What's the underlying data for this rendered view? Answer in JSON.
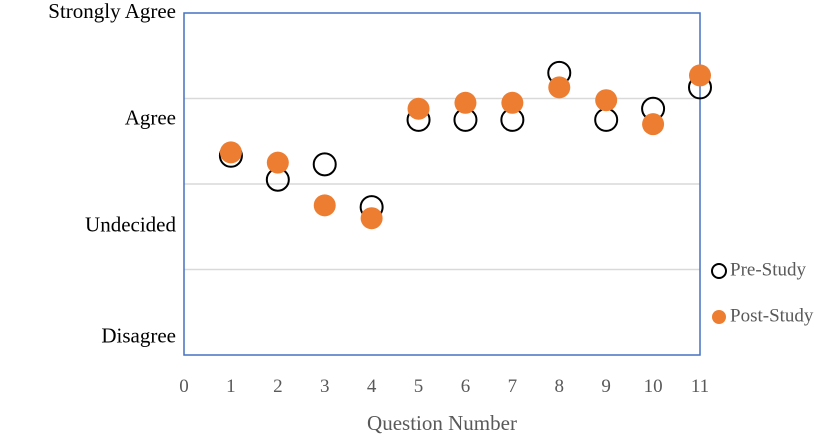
{
  "chart_data": {
    "type": "scatter",
    "xlabel": "Question Number",
    "ylabel": "",
    "xlim": [
      0,
      11
    ],
    "ylim": [
      0,
      4
    ],
    "x_ticks": [
      "0",
      "1",
      "2",
      "3",
      "4",
      "5",
      "6",
      "7",
      "8",
      "9",
      "10",
      "11"
    ],
    "y_ticks": [
      {
        "value": 0.2,
        "label": "Disagree"
      },
      {
        "value": 1.5,
        "label": "Undecided"
      },
      {
        "value": 2.75,
        "label": "Agree"
      },
      {
        "value": 4.0,
        "label": "Strongly Agree"
      }
    ],
    "gridlines_y": [
      1,
      2,
      3
    ],
    "legend_position": "right",
    "series": [
      {
        "name": "Pre-Study",
        "marker": "hollow-circle",
        "color": "#000000",
        "points": [
          {
            "x": 1,
            "y": 2.33
          },
          {
            "x": 2,
            "y": 2.05
          },
          {
            "x": 3,
            "y": 2.23
          },
          {
            "x": 4,
            "y": 1.73
          },
          {
            "x": 5,
            "y": 2.75
          },
          {
            "x": 6,
            "y": 2.75
          },
          {
            "x": 7,
            "y": 2.75
          },
          {
            "x": 8,
            "y": 3.3
          },
          {
            "x": 9,
            "y": 2.75
          },
          {
            "x": 10,
            "y": 2.88
          },
          {
            "x": 11,
            "y": 3.13
          }
        ]
      },
      {
        "name": "Post-Study",
        "marker": "filled-circle",
        "color": "#ED7D31",
        "points": [
          {
            "x": 1,
            "y": 2.37
          },
          {
            "x": 2,
            "y": 2.25
          },
          {
            "x": 3,
            "y": 1.75
          },
          {
            "x": 4,
            "y": 1.6
          },
          {
            "x": 5,
            "y": 2.88
          },
          {
            "x": 6,
            "y": 2.95
          },
          {
            "x": 7,
            "y": 2.95
          },
          {
            "x": 8,
            "y": 3.13
          },
          {
            "x": 9,
            "y": 2.98
          },
          {
            "x": 10,
            "y": 2.7
          },
          {
            "x": 11,
            "y": 3.27
          }
        ]
      }
    ]
  }
}
